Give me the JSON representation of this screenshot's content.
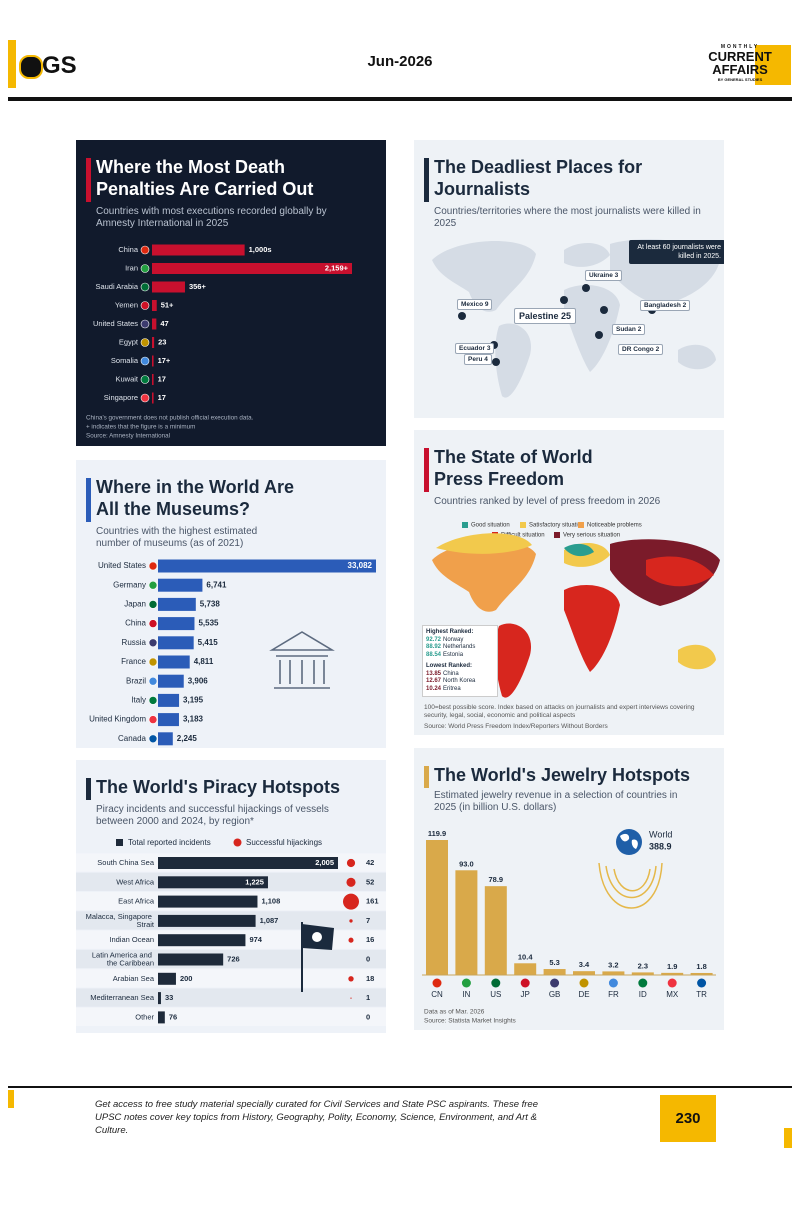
{
  "header": {
    "logo": "GS",
    "date": "Jun-2026",
    "brand_top": "MONTHLY",
    "brand_line1": "CURRENT",
    "brand_line2": "AFFAIRS",
    "brand_sub": "BY GENERAL STUDIES"
  },
  "chart_data": [
    {
      "type": "bar",
      "orientation": "horizontal",
      "title": "Where the Most Death Penalties Are Carried Out",
      "subtitle": "Countries with most executions recorded globally by Amnesty International in 2025",
      "categories": [
        "China",
        "Iran",
        "Saudi Arabia",
        "Yemen",
        "United States",
        "Egypt",
        "Somalia",
        "Kuwait",
        "Singapore"
      ],
      "values": [
        1000,
        2159,
        356,
        51,
        47,
        23,
        17,
        17,
        17
      ],
      "value_labels": [
        "1,000s",
        "2,159+",
        "356+",
        "51+",
        "47",
        "23",
        "17+",
        "17",
        "17"
      ],
      "color": "#c8102e",
      "notes": [
        "China's government does not publish official execution data.",
        "+ indicates that the figure is a minimum",
        "Source: Amnesty International"
      ]
    },
    {
      "type": "map",
      "title": "The Deadliest Places for Journalists",
      "subtitle": "Countries/territories where the most journalists were killed in 2025",
      "callout": "At least 60 journalists were killed in 2025.",
      "regions": [
        {
          "name": "Ukraine",
          "value": 3
        },
        {
          "name": "Mexico",
          "value": 9
        },
        {
          "name": "Bangladesh",
          "value": 2
        },
        {
          "name": "Palestine",
          "value": 25
        },
        {
          "name": "Sudan",
          "value": 2
        },
        {
          "name": "Ecuador",
          "value": 3
        },
        {
          "name": "Peru",
          "value": 4
        },
        {
          "name": "DR Congo",
          "value": 2
        }
      ]
    },
    {
      "type": "bar",
      "orientation": "horizontal",
      "title": "Where in the World Are All the Museums?",
      "subtitle": "Countries with the highest estimated number of museums (as of 2021)",
      "categories": [
        "United States",
        "Germany",
        "Japan",
        "China",
        "Russia",
        "France",
        "Brazil",
        "Italy",
        "United Kingdom",
        "Canada"
      ],
      "values": [
        33082,
        6741,
        5738,
        5535,
        5415,
        4811,
        3906,
        3195,
        3183,
        2245
      ],
      "value_labels": [
        "33,082",
        "6,741",
        "5,738",
        "5,535",
        "5,415",
        "4,811",
        "3,906",
        "3,195",
        "3,183",
        "2,245"
      ],
      "color": "#2b5cb8"
    },
    {
      "type": "map",
      "title": "The State of World Press Freedom",
      "subtitle": "Countries ranked by level of press freedom in 2026",
      "legend": [
        {
          "name": "Good situation",
          "color": "#2a9d8f"
        },
        {
          "name": "Satisfactory situation",
          "color": "#f2c94c"
        },
        {
          "name": "Noticeable problems",
          "color": "#f0a04b"
        },
        {
          "name": "Difficult situation",
          "color": "#d7261e"
        },
        {
          "name": "Very serious situation",
          "color": "#7b1b2a"
        }
      ],
      "highest": {
        "title": "Highest Ranked:",
        "items": [
          {
            "score": 92.72,
            "country": "Norway"
          },
          {
            "score": 88.92,
            "country": "Netherlands"
          },
          {
            "score": 88.54,
            "country": "Estonia"
          }
        ]
      },
      "lowest": {
        "title": "Lowest Ranked:",
        "items": [
          {
            "score": 13.85,
            "country": "China"
          },
          {
            "score": 12.67,
            "country": "North Korea"
          },
          {
            "score": 10.24,
            "country": "Eritrea"
          }
        ]
      },
      "notes": [
        "100=best possible score. Index based on attacks on journalists and expert interviews covering security, legal, social, economic and political aspects",
        "Source: World Press Freedom Index/Reporters Without Borders"
      ]
    },
    {
      "type": "bar",
      "orientation": "horizontal",
      "title": "The World's Piracy Hotspots",
      "subtitle": "Piracy incidents and successful hijackings of vessels between 2000 and 2024, by region*",
      "categories": [
        "South China Sea",
        "West Africa",
        "East Africa",
        "Malacca, Singapore Strait",
        "Indian Ocean",
        "Latin America and the Caribbean",
        "Arabian Sea",
        "Mediterranean Sea",
        "Other"
      ],
      "series": [
        {
          "name": "Total reported incidents",
          "color": "#1e2a3a",
          "values": [
            2005,
            1225,
            1108,
            1087,
            974,
            726,
            200,
            33,
            76
          ],
          "value_labels": [
            "2,005",
            "1,225",
            "1,108",
            "1,087",
            "974",
            "726",
            "200",
            "33",
            "76"
          ]
        },
        {
          "name": "Successful hijackings",
          "color": "#d7261e",
          "values": [
            42,
            52,
            161,
            7,
            16,
            0,
            18,
            1,
            0
          ]
        }
      ]
    },
    {
      "type": "bar",
      "orientation": "vertical",
      "title": "The World's Jewelry Hotspots",
      "subtitle": "Estimated jewelry revenue in a selection of countries in 2025 (in billion U.S. dollars)",
      "categories": [
        "CN",
        "IN",
        "US",
        "JP",
        "GB",
        "DE",
        "FR",
        "ID",
        "MX",
        "TR"
      ],
      "values": [
        119.9,
        93.0,
        78.9,
        10.4,
        5.3,
        3.4,
        3.2,
        2.3,
        1.9,
        1.8
      ],
      "value_labels": [
        "119.9",
        "93.0",
        "78.9",
        "10.4",
        "5.3",
        "3.4",
        "3.2",
        "2.3",
        "1.9",
        "1.8"
      ],
      "color": "#d9a94a",
      "total_label": "World",
      "total_value": 388.9,
      "notes": [
        "Data as of Mar. 2026",
        "Source: Statista Market Insights"
      ]
    }
  ],
  "footer": {
    "text": "Get access to free study material specially curated for Civil Services and State PSC aspirants. These free UPSC notes cover key topics from History, Geography, Polity, Economy, Science, Environment, and Art & Culture.",
    "page": "230"
  }
}
